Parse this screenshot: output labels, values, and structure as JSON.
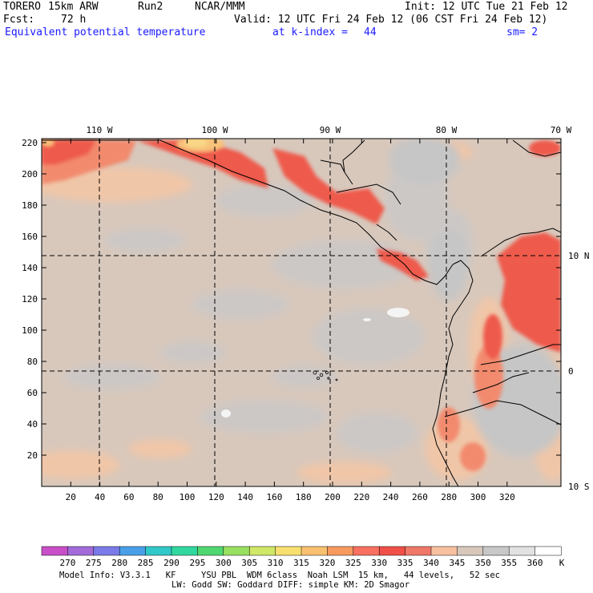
{
  "header": {
    "model": "TORERO",
    "resolution": "15km ARW",
    "run": "Run2",
    "org": "NCAR/MMM",
    "init": "Init: 12 UTC Tue 21 Feb 12",
    "fcst_label": "Fcst:",
    "fcst_value": "72 h",
    "valid": "Valid: 12 UTC Fri 24 Feb 12 (06 CST Fri 24 Feb 12)",
    "field": "Equivalent potential temperature",
    "level": "at k-index =",
    "level_value": "44",
    "smoothing": "sm= 2"
  },
  "map": {
    "lon_labels": [
      "110 W",
      "100 W",
      "90 W",
      "80 W",
      "70 W"
    ],
    "lat_labels": [
      "10 N",
      "0",
      "10 S"
    ],
    "y_ticks": [
      "220",
      "200",
      "180",
      "160",
      "140",
      "120",
      "100",
      "80",
      "60",
      "40",
      "20"
    ],
    "x_ticks": [
      "20",
      "40",
      "60",
      "80",
      "100",
      "120",
      "140",
      "160",
      "180",
      "200",
      "220",
      "240",
      "260",
      "280",
      "300",
      "320"
    ]
  },
  "colorbar": {
    "labels": [
      "270",
      "275",
      "280",
      "285",
      "290",
      "295",
      "300",
      "305",
      "310",
      "315",
      "320",
      "325",
      "330",
      "335",
      "340",
      "345",
      "350",
      "355",
      "360"
    ],
    "unit": "K",
    "colors": [
      "#c84fc8",
      "#a26bd8",
      "#7a7ae8",
      "#4aa0e8",
      "#30c8c8",
      "#30d8a0",
      "#50d870",
      "#98e060",
      "#d0e868",
      "#f8e070",
      "#f8c070",
      "#f89a60",
      "#f87060",
      "#f05048",
      "#f07868",
      "#f8c0a0",
      "#d8c8bc",
      "#c8c8c8",
      "#e2e2e2",
      "#ffffff"
    ]
  },
  "footer": {
    "line1": "Model Info: V3.3.1   KF     YSU PBL  WDM 6class  Noah LSM  15 km,   44 levels,   52 sec",
    "line2": "LW: Godd SW: Goddard DIFF: simple KM: 2D Smagor"
  }
}
